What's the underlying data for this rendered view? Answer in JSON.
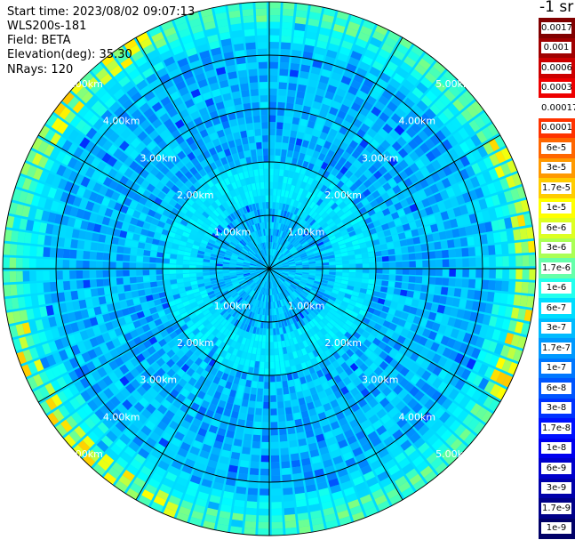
{
  "info": {
    "start_time": "Start time: 2023/08/02 09:07:13",
    "instrument": "WLS200s-181",
    "field": "Field: BETA",
    "elevation": "Elevation(deg): 35.30",
    "nrays": "NRays: 120"
  },
  "colorbar": {
    "title": "-1 sr",
    "labels": [
      "0.0017",
      "0.001",
      "0.0006",
      "0.0003",
      "0.00017",
      "0.0001",
      "6e-5",
      "3e-5",
      "1.7e-5",
      "1e-5",
      "6e-6",
      "3e-6",
      "1.7e-6",
      "1e-6",
      "6e-7",
      "3e-7",
      "1.7e-7",
      "1e-7",
      "6e-8",
      "3e-8",
      "1.7e-8",
      "1e-8",
      "6e-9",
      "3e-9",
      "1.7e-9",
      "1e-9"
    ],
    "colors": [
      "#800000",
      "#a00000",
      "#cc0000",
      "#ee0000",
      "#ffffff",
      "#ff3300",
      "#ff6600",
      "#ff9900",
      "#ffcc00",
      "#ffff00",
      "#ddff22",
      "#aaff55",
      "#66ffaa",
      "#22ffee",
      "#00ddff",
      "#00bbff",
      "#0099ff",
      "#0077ff",
      "#0055ff",
      "#0033ff",
      "#0011ff",
      "#0000ee",
      "#0000cc",
      "#0000aa",
      "#000088",
      "#000066"
    ]
  },
  "chart_data": {
    "type": "heatmap",
    "projection": "polar PPI",
    "field": "BETA",
    "elevation_deg": 35.3,
    "n_rays": 120,
    "range_km_max": 5.0,
    "range_rings_km": [
      1,
      2,
      3,
      4,
      5
    ],
    "ring_labels": [
      "1.00km",
      "2.00km",
      "3.00km",
      "4.00km",
      "5.00km"
    ],
    "azimuth_spokes_deg": [
      0,
      30,
      60,
      90,
      120,
      150,
      180,
      210,
      240,
      270,
      300,
      330
    ],
    "color_scale": "log",
    "value_range": [
      1e-09,
      0.0017
    ],
    "notes_pattern": "near-range (<1km) values mostly 1.7e-7 to 6e-8; 1-4km mostly 1e-7 to 6e-7; outer ring at ~5km has elevated values 1e-6 to 3e-5 in the north-west, east and south-west sectors"
  }
}
